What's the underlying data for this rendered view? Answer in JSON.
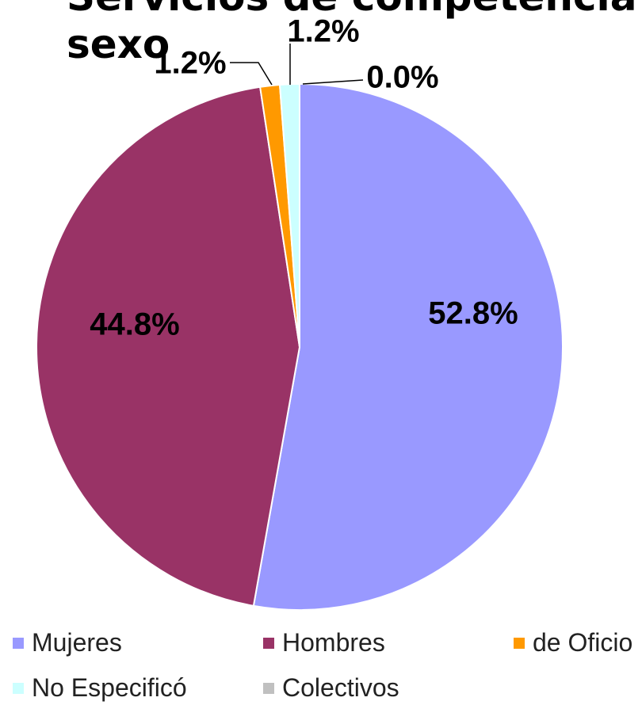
{
  "chart_data": {
    "type": "pie",
    "title": "Servicios de competencia ... sexo",
    "title_lines": [
      "Servicios de competencia",
      "sexo"
    ],
    "categories": [
      "Mujeres",
      "Hombres",
      "de Oficio",
      "No Especificó",
      "Colectivos"
    ],
    "values": [
      52.8,
      44.8,
      1.2,
      1.2,
      0.0
    ],
    "data_labels": [
      "52.8%",
      "44.8%",
      "1.2%",
      "1.2%",
      "0.0%"
    ],
    "colors": [
      "#9999FF",
      "#993366",
      "#FF9900",
      "#CCFFFF",
      "#C0C0C0"
    ],
    "legend_position": "bottom"
  }
}
